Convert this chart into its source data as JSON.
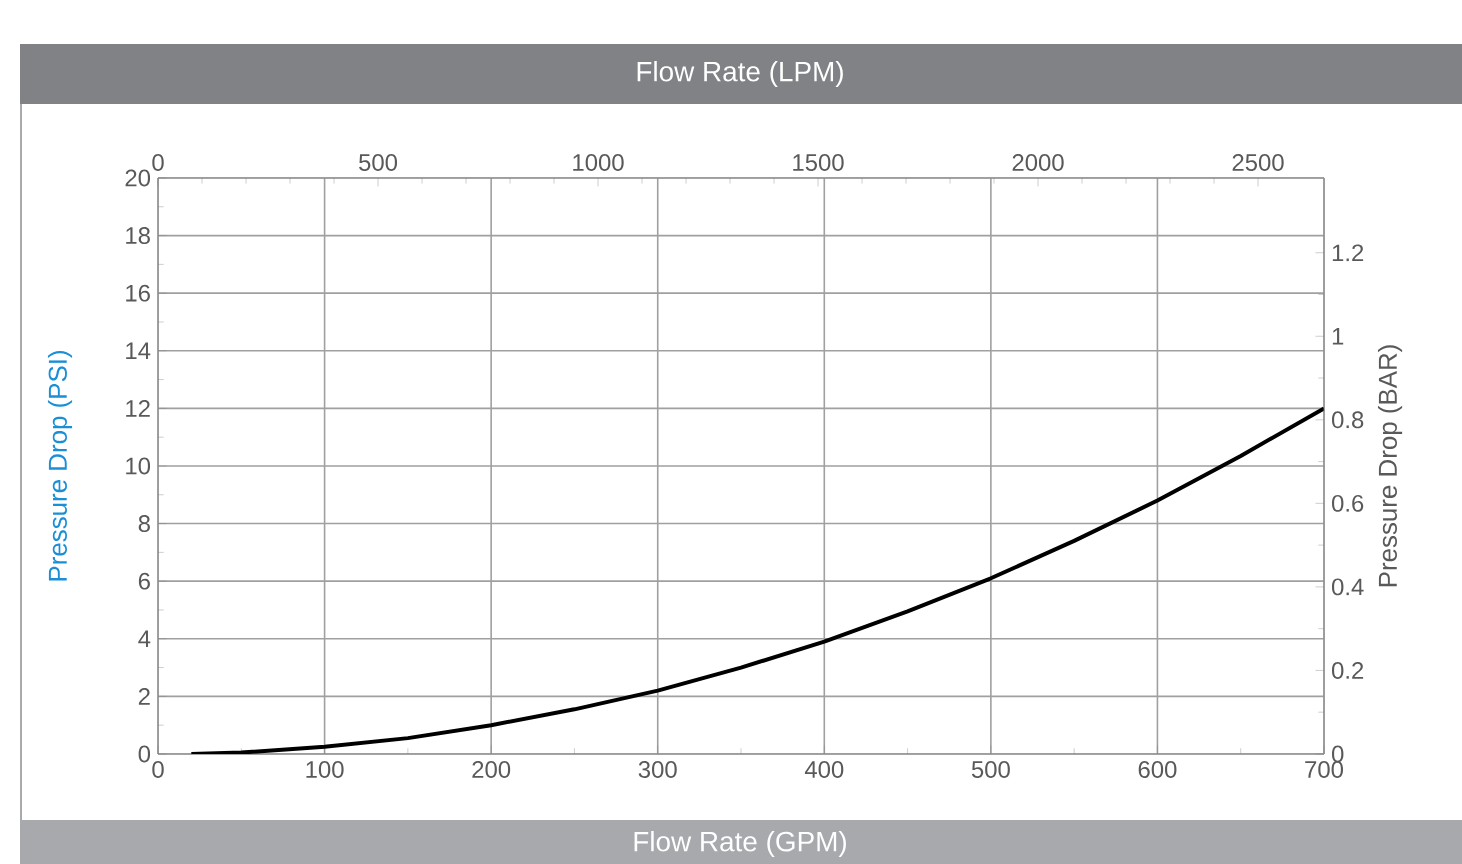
{
  "chart_data": {
    "type": "line",
    "xlabel": "Flow Rate (GPM)",
    "x2label": "Flow Rate (LPM)",
    "ylabel": "Pressure Drop (PSI)",
    "y2label": "Pressure Drop (BAR)",
    "x": [
      20,
      50,
      100,
      150,
      200,
      250,
      300,
      350,
      400,
      450,
      500,
      550,
      600,
      650,
      700
    ],
    "series": [
      {
        "color": "#000000",
        "values": [
          0,
          0.05,
          0.25,
          0.55,
          1.0,
          1.55,
          2.2,
          3.0,
          3.9,
          4.95,
          6.1,
          7.4,
          8.8,
          10.35,
          12
        ]
      }
    ],
    "xlim": [
      0,
      700
    ],
    "xticks": [
      0,
      100,
      200,
      300,
      400,
      500,
      600,
      700
    ],
    "ylim": [
      0,
      20
    ],
    "yticks": [
      0,
      2,
      4,
      6,
      8,
      10,
      12,
      14,
      16,
      18,
      20
    ],
    "x2lim": [
      0,
      2650
    ],
    "x2ticks": [
      0,
      500,
      1000,
      1500,
      2000,
      2500
    ],
    "y2lim": [
      0,
      1.379
    ],
    "y2ticks": [
      0,
      0.2,
      0.4,
      0.6,
      0.8,
      1,
      1.2
    ],
    "grid": true,
    "marker": "none",
    "line_style": "solid"
  }
}
